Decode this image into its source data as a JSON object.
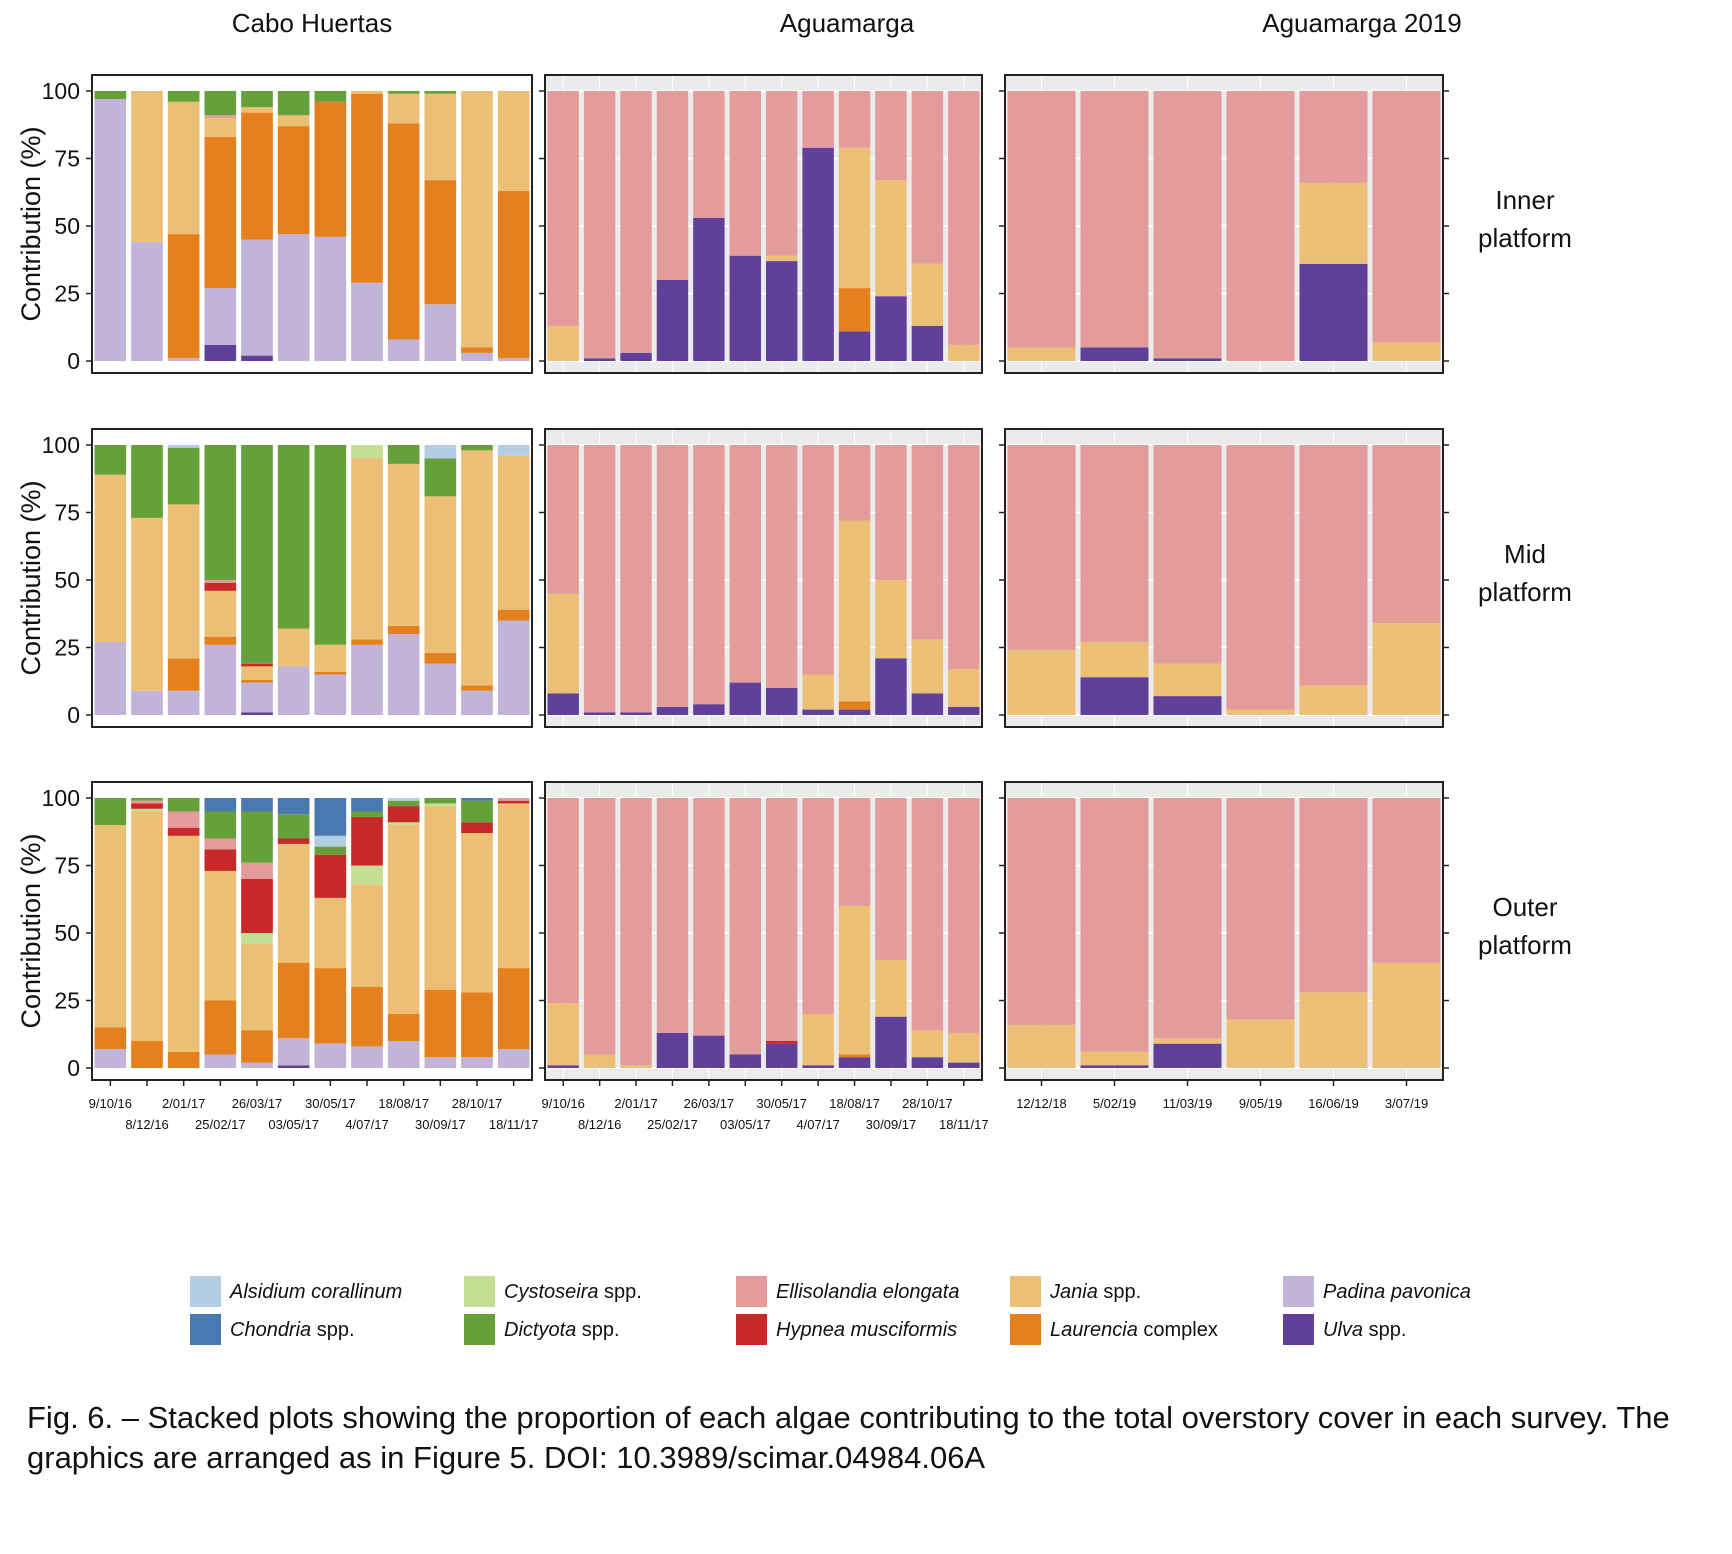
{
  "colors": {
    "Alsidium corallinum": "#b3cde3",
    "Chondria spp.": "#4a78b0",
    "Cystoseira spp.": "#c4df93",
    "Dictyota spp.": "#66a03a",
    "Ellisolandia elongata": "#e39b9b",
    "Hypnea musciformis": "#c82828",
    "Jania spp.": "#ecbf76",
    "Laurencia complex": "#e5801f",
    "Padina pavonica": "#c2b3d8",
    "Ulva spp.": "#61409a"
  },
  "legend": [
    {
      "species": "Alsidium corallinum",
      "italic": "Alsidium corallinum",
      "rest": ""
    },
    {
      "species": "Chondria spp.",
      "italic": "Chondria",
      "rest": " spp."
    },
    {
      "species": "Cystoseira spp.",
      "italic": "Cystoseira",
      "rest": " spp."
    },
    {
      "species": "Dictyota spp.",
      "italic": "Dictyota",
      "rest": " spp."
    },
    {
      "species": "Ellisolandia elongata",
      "italic": "Ellisolandia elongata",
      "rest": ""
    },
    {
      "species": "Hypnea musciformis",
      "italic": "Hypnea musciformis",
      "rest": ""
    },
    {
      "species": "Jania spp.",
      "italic": "Jania",
      "rest": " spp."
    },
    {
      "species": "Laurencia complex",
      "italic": "Laurencia",
      "rest": " complex"
    },
    {
      "species": "Padina pavonica",
      "italic": "Padina pavonica",
      "rest": ""
    },
    {
      "species": "Ulva spp.",
      "italic": "Ulva",
      "rest": " spp."
    }
  ],
  "caption": "Fig. 6. – Stacked plots showing the proportion of each algae contributing to the total overstory cover in each survey. The graphics are arranged as in Figure 5. DOI: 10.3989/scimar.04984.06A",
  "chart_data": {
    "type": "bar",
    "stacked": true,
    "ylabel": "Contribution (%)",
    "ylim": [
      0,
      100
    ],
    "yticks": [
      0,
      25,
      50,
      75,
      100
    ],
    "columns": [
      "Cabo Huertas",
      "Aguamarga",
      "Aguamarga 2019"
    ],
    "rows": [
      {
        "id": "inner",
        "lines": [
          "Inner",
          "platform"
        ]
      },
      {
        "id": "mid",
        "lines": [
          "Mid",
          "platform"
        ]
      },
      {
        "id": "outer",
        "lines": [
          "Outer",
          "platform"
        ]
      }
    ],
    "categories_2017": [
      "9/10/16",
      "8/12/16",
      "2/01/17",
      "25/02/17",
      "26/03/17",
      "03/05/17",
      "30/05/17",
      "4/07/17",
      "18/08/17",
      "30/09/17",
      "28/10/17",
      "18/11/17"
    ],
    "categories_2019": [
      "12/12/18",
      "5/02/19",
      "11/03/19",
      "9/05/19",
      "16/06/19",
      "3/07/19"
    ],
    "panels": {
      "Cabo Huertas": {
        "inner": [
          {
            "Padina pavonica": 97,
            "Dictyota spp.": 3
          },
          {
            "Padina pavonica": 44,
            "Jania spp.": 56
          },
          {
            "Padina pavonica": 1,
            "Laurencia complex": 46,
            "Jania spp.": 49,
            "Dictyota spp.": 4
          },
          {
            "Ulva spp.": 6,
            "Padina pavonica": 21,
            "Laurencia complex": 56,
            "Jania spp.": 7,
            "Ellisolandia elongata": 1,
            "Dictyota spp.": 9
          },
          {
            "Ulva spp.": 2,
            "Padina pavonica": 43,
            "Laurencia complex": 47,
            "Jania spp.": 2,
            "Dictyota spp.": 6
          },
          {
            "Padina pavonica": 47,
            "Laurencia complex": 40,
            "Jania spp.": 4,
            "Dictyota spp.": 9
          },
          {
            "Padina pavonica": 46,
            "Laurencia complex": 50,
            "Dictyota spp.": 4
          },
          {
            "Padina pavonica": 29,
            "Laurencia complex": 70,
            "Jania spp.": 1
          },
          {
            "Padina pavonica": 8,
            "Laurencia complex": 80,
            "Jania spp.": 11,
            "Dictyota spp.": 1
          },
          {
            "Padina pavonica": 21,
            "Laurencia complex": 46,
            "Jania spp.": 32,
            "Dictyota spp.": 1
          },
          {
            "Padina pavonica": 3,
            "Laurencia complex": 2,
            "Jania spp.": 95
          },
          {
            "Padina pavonica": 1,
            "Laurencia complex": 62,
            "Jania spp.": 37
          }
        ],
        "mid": [
          {
            "Padina pavonica": 27,
            "Jania spp.": 62,
            "Dictyota spp.": 11
          },
          {
            "Padina pavonica": 9,
            "Jania spp.": 64,
            "Dictyota spp.": 27
          },
          {
            "Padina pavonica": 9,
            "Laurencia complex": 12,
            "Jania spp.": 57,
            "Dictyota spp.": 21,
            "Alsidium corallinum": 1
          },
          {
            "Padina pavonica": 26,
            "Laurencia complex": 3,
            "Jania spp.": 17,
            "Hypnea musciformis": 3,
            "Ellisolandia elongata": 1,
            "Dictyota spp.": 50
          },
          {
            "Ulva spp.": 1,
            "Padina pavonica": 11,
            "Jania spp.": 5,
            "Laurencia complex": 1,
            "Hypnea musciformis": 1,
            "Dictyota spp.": 81
          },
          {
            "Padina pavonica": 18,
            "Jania spp.": 14,
            "Dictyota spp.": 68
          },
          {
            "Padina pavonica": 15,
            "Jania spp.": 10,
            "Laurencia complex": 1,
            "Dictyota spp.": 74
          },
          {
            "Padina pavonica": 26,
            "Laurencia complex": 2,
            "Jania spp.": 67,
            "Cystoseira spp.": 5
          },
          {
            "Padina pavonica": 30,
            "Laurencia complex": 3,
            "Jania spp.": 60,
            "Dictyota spp.": 7
          },
          {
            "Padina pavonica": 19,
            "Laurencia complex": 4,
            "Jania spp.": 58,
            "Dictyota spp.": 14,
            "Alsidium corallinum": 5
          },
          {
            "Padina pavonica": 9,
            "Laurencia complex": 2,
            "Jania spp.": 87,
            "Dictyota spp.": 2
          },
          {
            "Padina pavonica": 35,
            "Laurencia complex": 4,
            "Jania spp.": 57,
            "Alsidium corallinum": 4
          }
        ],
        "outer": [
          {
            "Padina pavonica": 7,
            "Laurencia complex": 8,
            "Jania spp.": 75,
            "Dictyota spp.": 10
          },
          {
            "Laurencia complex": 10,
            "Jania spp.": 85,
            "Hypnea musciformis": 2,
            "Ellisolandia elongata": 1,
            "Dictyota spp.": 1,
            "Cystoseira spp.": 1
          },
          {
            "Laurencia complex": 6,
            "Jania spp.": 80,
            "Hypnea musciformis": 3,
            "Ellisolandia elongata": 6,
            "Dictyota spp.": 5
          },
          {
            "Padina pavonica": 5,
            "Laurencia complex": 20,
            "Jania spp.": 48,
            "Hypnea musciformis": 8,
            "Ellisolandia elongata": 4,
            "Dictyota spp.": 10,
            "Chondria spp.": 5
          },
          {
            "Padina pavonica": 2,
            "Laurencia complex": 12,
            "Jania spp.": 32,
            "Hypnea musciformis": 20,
            "Ellisolandia elongata": 6,
            "Dictyota spp.": 19,
            "Cystoseira spp.": 4,
            "Chondria spp.": 5
          },
          {
            "Ulva spp.": 1,
            "Padina pavonica": 10,
            "Laurencia complex": 28,
            "Jania spp.": 44,
            "Hypnea musciformis": 2,
            "Dictyota spp.": 9,
            "Chondria spp.": 6
          },
          {
            "Padina pavonica": 9,
            "Laurencia complex": 28,
            "Jania spp.": 26,
            "Hypnea musciformis": 16,
            "Dictyota spp.": 3,
            "Alsidium corallinum": 4,
            "Chondria spp.": 14
          },
          {
            "Padina pavonica": 8,
            "Laurencia complex": 22,
            "Jania spp.": 38,
            "Hypnea musciformis": 18,
            "Dictyota spp.": 2,
            "Cystoseira spp.": 7,
            "Chondria spp.": 5
          },
          {
            "Padina pavonica": 10,
            "Laurencia complex": 10,
            "Jania spp.": 70,
            "Hypnea musciformis": 6,
            "Dictyota spp.": 2,
            "Cystoseira spp.": 1,
            "Alsidium corallinum": 1
          },
          {
            "Padina pavonica": 4,
            "Laurencia complex": 25,
            "Jania spp.": 68,
            "Dictyota spp.": 2,
            "Cystoseira spp.": 1
          },
          {
            "Padina pavonica": 4,
            "Laurencia complex": 24,
            "Jania spp.": 59,
            "Hypnea musciformis": 4,
            "Dictyota spp.": 8,
            "Chondria spp.": 1
          },
          {
            "Padina pavonica": 7,
            "Laurencia complex": 30,
            "Jania spp.": 61,
            "Hypnea musciformis": 1,
            "Ellisolandia elongata": 1
          }
        ]
      },
      "Aguamarga": {
        "inner": [
          {
            "Jania spp.": 13,
            "Ellisolandia elongata": 87
          },
          {
            "Ulva spp.": 1,
            "Ellisolandia elongata": 99
          },
          {
            "Ulva spp.": 3,
            "Ellisolandia elongata": 97
          },
          {
            "Ulva spp.": 30,
            "Ellisolandia elongata": 70
          },
          {
            "Ulva spp.": 53,
            "Ellisolandia elongata": 47
          },
          {
            "Ulva spp.": 39,
            "Ellisolandia elongata": 61
          },
          {
            "Ulva spp.": 37,
            "Jania spp.": 2,
            "Ellisolandia elongata": 61
          },
          {
            "Ulva spp.": 79,
            "Ellisolandia elongata": 21
          },
          {
            "Ulva spp.": 11,
            "Laurencia complex": 16,
            "Jania spp.": 52,
            "Ellisolandia elongata": 21
          },
          {
            "Ulva spp.": 24,
            "Jania spp.": 43,
            "Ellisolandia elongata": 33
          },
          {
            "Ulva spp.": 13,
            "Jania spp.": 23,
            "Ellisolandia elongata": 64
          },
          {
            "Jania spp.": 6,
            "Ellisolandia elongata": 94
          }
        ],
        "mid": [
          {
            "Ulva spp.": 8,
            "Jania spp.": 37,
            "Ellisolandia elongata": 55
          },
          {
            "Ulva spp.": 1,
            "Ellisolandia elongata": 99
          },
          {
            "Ulva spp.": 1,
            "Ellisolandia elongata": 99
          },
          {
            "Ulva spp.": 3,
            "Ellisolandia elongata": 97
          },
          {
            "Ulva spp.": 4,
            "Ellisolandia elongata": 96
          },
          {
            "Ulva spp.": 12,
            "Ellisolandia elongata": 88
          },
          {
            "Ulva spp.": 10,
            "Ellisolandia elongata": 90
          },
          {
            "Ulva spp.": 2,
            "Jania spp.": 13,
            "Ellisolandia elongata": 85
          },
          {
            "Ulva spp.": 2,
            "Laurencia complex": 3,
            "Jania spp.": 67,
            "Ellisolandia elongata": 28
          },
          {
            "Ulva spp.": 21,
            "Jania spp.": 29,
            "Ellisolandia elongata": 50
          },
          {
            "Ulva spp.": 8,
            "Jania spp.": 20,
            "Ellisolandia elongata": 72
          },
          {
            "Ulva spp.": 3,
            "Jania spp.": 14,
            "Ellisolandia elongata": 83
          }
        ],
        "outer": [
          {
            "Ulva spp.": 1,
            "Jania spp.": 23,
            "Ellisolandia elongata": 76
          },
          {
            "Jania spp.": 5,
            "Ellisolandia elongata": 95
          },
          {
            "Jania spp.": 1,
            "Ellisolandia elongata": 99
          },
          {
            "Ulva spp.": 13,
            "Ellisolandia elongata": 87
          },
          {
            "Ulva spp.": 12,
            "Ellisolandia elongata": 88
          },
          {
            "Ulva spp.": 5,
            "Ellisolandia elongata": 95
          },
          {
            "Ulva spp.": 9,
            "Hypnea musciformis": 1,
            "Ellisolandia elongata": 90
          },
          {
            "Ulva spp.": 1,
            "Jania spp.": 19,
            "Ellisolandia elongata": 80
          },
          {
            "Ulva spp.": 4,
            "Laurencia complex": 1,
            "Jania spp.": 55,
            "Ellisolandia elongata": 40
          },
          {
            "Ulva spp.": 19,
            "Jania spp.": 21,
            "Ellisolandia elongata": 60
          },
          {
            "Ulva spp.": 4,
            "Jania spp.": 10,
            "Ellisolandia elongata": 86
          },
          {
            "Ulva spp.": 2,
            "Jania spp.": 11,
            "Ellisolandia elongata": 87
          }
        ]
      },
      "Aguamarga 2019": {
        "inner": [
          {
            "Jania spp.": 5,
            "Ellisolandia elongata": 95
          },
          {
            "Ulva spp.": 5,
            "Ellisolandia elongata": 95
          },
          {
            "Ulva spp.": 1,
            "Ellisolandia elongata": 99
          },
          {
            "Ellisolandia elongata": 100
          },
          {
            "Ulva spp.": 36,
            "Jania spp.": 30,
            "Ellisolandia elongata": 34
          },
          {
            "Jania spp.": 7,
            "Ellisolandia elongata": 93
          }
        ],
        "mid": [
          {
            "Jania spp.": 24,
            "Ellisolandia elongata": 76
          },
          {
            "Ulva spp.": 14,
            "Jania spp.": 13,
            "Ellisolandia elongata": 73
          },
          {
            "Ulva spp.": 7,
            "Jania spp.": 12,
            "Ellisolandia elongata": 81
          },
          {
            "Jania spp.": 2,
            "Ellisolandia elongata": 98
          },
          {
            "Jania spp.": 11,
            "Ellisolandia elongata": 89
          },
          {
            "Jania spp.": 34,
            "Ellisolandia elongata": 66
          }
        ],
        "outer": [
          {
            "Jania spp.": 16,
            "Ellisolandia elongata": 84
          },
          {
            "Ulva spp.": 1,
            "Jania spp.": 5,
            "Ellisolandia elongata": 94
          },
          {
            "Ulva spp.": 9,
            "Jania spp.": 2,
            "Ellisolandia elongata": 89
          },
          {
            "Jania spp.": 18,
            "Ellisolandia elongata": 82
          },
          {
            "Jania spp.": 28,
            "Ellisolandia elongata": 72
          },
          {
            "Jania spp.": 39,
            "Ellisolandia elongata": 61
          }
        ]
      }
    }
  }
}
